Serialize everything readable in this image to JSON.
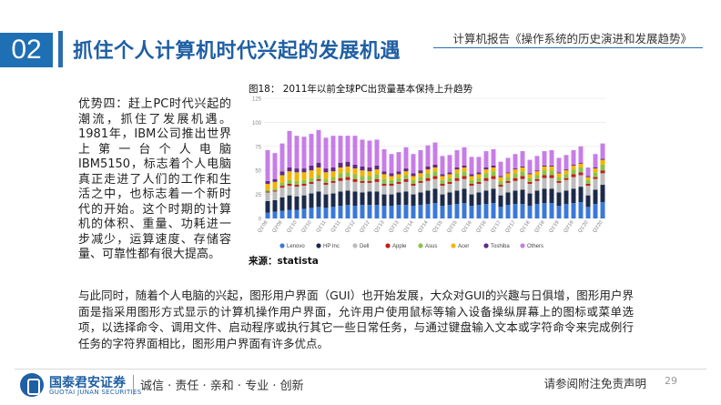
{
  "header": {
    "section_number": "02",
    "title": "抓住个人计算机时代兴起的发展机遇",
    "report_name": "计算机报告《操作系统的历史演进和发展趋势》"
  },
  "left_paragraph": "优势四：赶上PC时代兴起的潮流，抓住了发展机遇。1981年，IBM公司推出世界上第一台个人电脑IBM5150，标志着个人电脑真正走进了人们的工作和生活之中，也标志着一个新时代的开始。这个时期的计算机的体积、重量、功耗进一步减少，运算速度、存储容量、可靠性都有很大提高。",
  "figure": {
    "caption": "图18：  2011年以前全球PC出货量基本保持上升趋势",
    "source": "来源：statista"
  },
  "chart_data": {
    "type": "bar",
    "stacked": true,
    "ylim": [
      0,
      125
    ],
    "yticks": [
      0,
      25,
      50,
      75,
      100,
      125
    ],
    "grid": true,
    "legend_position": "bottom",
    "categories": [
      "Q1'09",
      "Q2'09",
      "Q3'09",
      "Q4'09",
      "Q1'10",
      "Q2'10",
      "Q3'10",
      "Q4'10",
      "Q1'11",
      "Q2'11",
      "Q3'11",
      "Q4'11",
      "Q1'12",
      "Q2'12",
      "Q3'12",
      "Q4'12",
      "Q1'13",
      "Q2'13",
      "Q3'13",
      "Q4'13",
      "Q1'14",
      "Q2'14",
      "Q3'14",
      "Q4'14",
      "Q1'15",
      "Q2'15",
      "Q3'15",
      "Q4'15",
      "Q1'16",
      "Q2'16",
      "Q3'16",
      "Q4'16",
      "Q1'17",
      "Q2'17",
      "Q3'17",
      "Q4'17",
      "Q1'18",
      "Q2'18",
      "Q3'18",
      "Q4'18",
      "Q1'19",
      "Q2'19",
      "Q3'19",
      "Q4'19",
      "Q1'20",
      "Q2'20",
      "Q3'20"
    ],
    "xtick_labels": [
      "Q1'09",
      "Q3'09",
      "Q1'10",
      "Q3'10",
      "Q1'11",
      "Q3'11",
      "Q1'12",
      "Q3'12",
      "Q1'13",
      "Q3'13",
      "Q1'14",
      "Q3'14",
      "Q1'15",
      "Q3'15",
      "Q1'16",
      "Q3'16",
      "Q1'17",
      "Q3'17",
      "Q1'18",
      "Q3'18",
      "Q1'19",
      "Q3'19",
      "Q1'20",
      "Q3'20"
    ],
    "series": [
      {
        "name": "Lenovo",
        "color": "#3b78d8",
        "values": [
          6,
          7,
          8,
          9,
          9,
          10,
          11,
          12,
          11,
          12,
          13,
          14,
          13,
          14,
          14,
          14,
          13,
          13,
          14,
          14,
          13,
          14,
          15,
          16,
          13,
          14,
          15,
          16,
          13,
          14,
          15,
          16,
          12,
          14,
          15,
          15,
          13,
          15,
          16,
          16,
          13,
          15,
          16,
          17,
          12,
          15,
          17
        ]
      },
      {
        "name": "HP Inc",
        "color": "#1c2a4a",
        "values": [
          12,
          12,
          14,
          15,
          14,
          14,
          15,
          16,
          14,
          14,
          15,
          15,
          15,
          13,
          14,
          14,
          12,
          12,
          13,
          14,
          12,
          13,
          14,
          15,
          12,
          13,
          14,
          15,
          12,
          13,
          14,
          15,
          12,
          13,
          14,
          15,
          13,
          14,
          15,
          15,
          14,
          14,
          15,
          16,
          12,
          15,
          18
        ]
      },
      {
        "name": "Dell",
        "color": "#bdbdbd",
        "values": [
          9,
          9,
          10,
          10,
          10,
          10,
          10,
          11,
          10,
          11,
          11,
          11,
          10,
          10,
          9,
          10,
          9,
          9,
          9,
          10,
          9,
          10,
          10,
          10,
          9,
          9,
          10,
          10,
          9,
          9,
          10,
          10,
          9,
          10,
          10,
          11,
          10,
          10,
          11,
          11,
          10,
          11,
          12,
          12,
          10,
          11,
          12
        ]
      },
      {
        "name": "Apple",
        "color": "#c0201a",
        "values": [
          1,
          1,
          2,
          2,
          2,
          2,
          2,
          2,
          2,
          2,
          3,
          3,
          3,
          2,
          2,
          3,
          2,
          2,
          2,
          3,
          2,
          2,
          3,
          3,
          2,
          2,
          3,
          3,
          2,
          2,
          3,
          3,
          2,
          2,
          3,
          3,
          2,
          2,
          3,
          3,
          2,
          2,
          3,
          3,
          2,
          2,
          3
        ]
      },
      {
        "name": "Asus",
        "color": "#8bc34a",
        "values": [
          2,
          2,
          3,
          4,
          4,
          4,
          4,
          4,
          4,
          4,
          5,
          5,
          5,
          5,
          5,
          5,
          5,
          4,
          4,
          4,
          4,
          4,
          5,
          5,
          4,
          4,
          5,
          5,
          4,
          4,
          5,
          5,
          4,
          4,
          5,
          5,
          4,
          4,
          5,
          5,
          4,
          4,
          5,
          5,
          4,
          5,
          6
        ]
      },
      {
        "name": "Acer",
        "color": "#f5b400",
        "values": [
          6,
          7,
          8,
          9,
          9,
          8,
          8,
          8,
          7,
          6,
          6,
          6,
          6,
          6,
          5,
          5,
          5,
          4,
          4,
          4,
          4,
          4,
          4,
          4,
          4,
          4,
          4,
          4,
          4,
          4,
          4,
          4,
          4,
          4,
          4,
          4,
          4,
          4,
          4,
          4,
          4,
          4,
          4,
          4,
          3,
          4,
          5
        ]
      },
      {
        "name": "Toshiba",
        "color": "#5e2a84",
        "values": [
          3,
          3,
          4,
          4,
          4,
          4,
          5,
          5,
          4,
          4,
          5,
          5,
          4,
          4,
          4,
          4,
          3,
          3,
          3,
          3,
          3,
          3,
          3,
          3,
          2,
          2,
          2,
          2,
          2,
          2,
          2,
          2,
          1,
          1,
          1,
          1,
          1,
          1,
          1,
          1,
          1,
          1,
          1,
          1,
          1,
          1,
          1
        ]
      },
      {
        "name": "Others",
        "color": "#c77de8",
        "values": [
          32,
          27,
          29,
          38,
          34,
          33,
          33,
          34,
          32,
          33,
          28,
          27,
          30,
          28,
          28,
          27,
          23,
          20,
          20,
          22,
          20,
          21,
          22,
          23,
          19,
          18,
          18,
          19,
          18,
          16,
          17,
          17,
          15,
          15,
          15,
          16,
          14,
          15,
          15,
          16,
          15,
          15,
          15,
          17,
          9,
          14,
          16
        ]
      }
    ]
  },
  "bottom_paragraph": "与此同时，随着个人电脑的兴起，图形用户界面（GUI）也开始发展，大众对GUI的兴趣与日俱增，图形用户界面是指采用图形方式显示的计算机操作用户界面，允许用户使用鼠标等输入设备操纵屏幕上的图标或菜单选项，以选择命令、调用文件、启动程序或执行其它一些日常任务，与通过键盘输入文本或字符命令来完成例行任务的字符界面相比，图形用户界面有许多优点。",
  "footer": {
    "logo_name": "国泰君安证券",
    "logo_en": "GUOTAI JUNAN SECURITIES",
    "slogan": "诚信 · 责任 · 亲和 · 专业 · 创新",
    "disclaimer": "请参阅附注免责声明",
    "page_number": "29"
  }
}
